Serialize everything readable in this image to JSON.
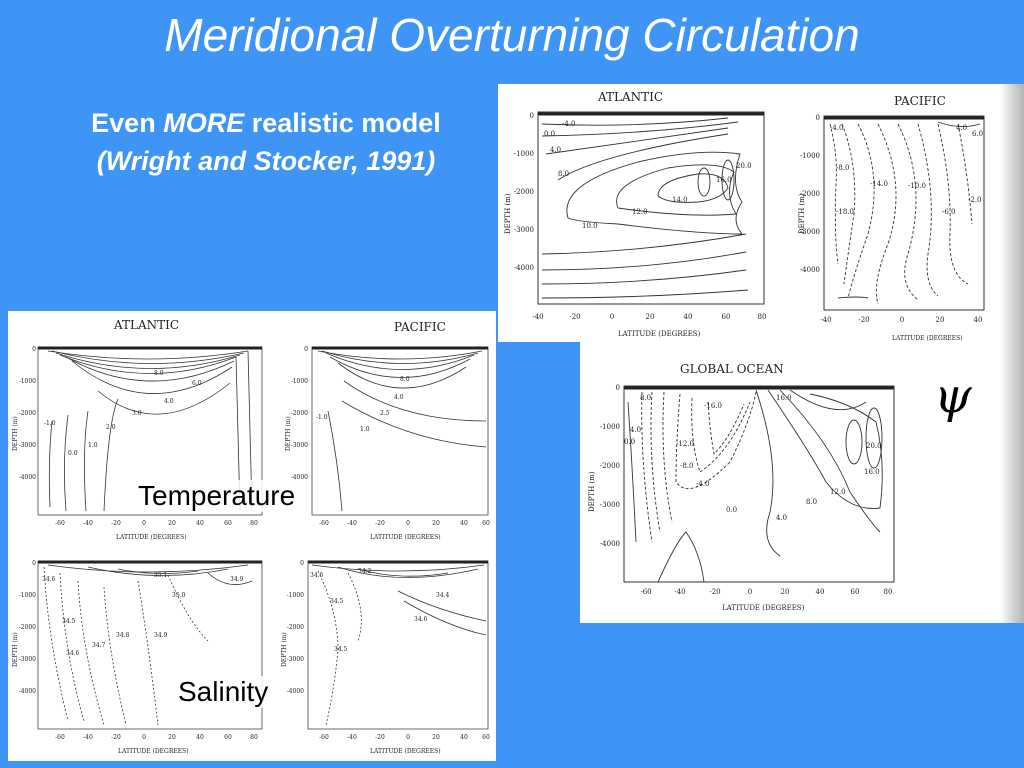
{
  "slide": {
    "title": "Meridional Overturning Circulation",
    "subtitle_prefix": "Even",
    "subtitle_emphasis": "MORE",
    "subtitle_suffix": "realistic model",
    "citation": "(Wright and Stocker, 1991)",
    "psi_symbol": "ψ",
    "temperature_label": "Temperature",
    "salinity_label": "Salinity"
  },
  "figures": {
    "streamfunction": {
      "atlantic_title": "ATLANTIC",
      "pacific_title": "PACIFIC",
      "global_title": "GLOBAL OCEAN",
      "depth_label": "DEPTH (m)",
      "lat_label": "LATITUDE (DEGREES)",
      "atlantic_contours": [
        "-4.0",
        "0.0",
        "4.0",
        "8.0",
        "10.0",
        "12.0",
        "14.0",
        "16.0",
        "20.0"
      ],
      "pacific_contours": [
        "-4.0",
        "-8.0",
        "-14.0",
        "-18.0",
        "-10.0",
        "-6.0",
        "-2.0",
        "4.0",
        "6.0"
      ],
      "global_contours": [
        "8.0",
        "4.0",
        "0.0",
        "-16.0",
        "-12.0",
        "-8.0",
        "-4.0",
        "16.0",
        "20.0",
        "12.0",
        "0.0",
        "4.0",
        "8.0",
        "16.0"
      ]
    },
    "temperature": {
      "atlantic_title": "ATLANTIC",
      "pacific_title": "PACIFIC",
      "lat_label": "LATITUDE (DEGREES)",
      "depth_label": "DEPTH (m)",
      "atlantic_contours": [
        "8.0",
        "6.0",
        "4.0",
        "3.0",
        "2.0",
        "1.0",
        "0.0",
        "-1.0"
      ],
      "pacific_contours": [
        "8.0",
        "4.0",
        "2.5",
        "1.0",
        "-1.0"
      ]
    },
    "salinity": {
      "lat_label": "LATITUDE (DEGREES)",
      "depth_label": "DEPTH (m)",
      "atlantic_contours": [
        "34.6",
        "35.1",
        "35.0",
        "34.9",
        "34.5",
        "34.8",
        "34.7",
        "34.6",
        "34.9"
      ],
      "pacific_contours": [
        "34.6",
        "34.2",
        "34.4",
        "34.5",
        "34.6",
        "34.5"
      ]
    },
    "axes": {
      "depth_ticks": [
        "0",
        "-1000",
        "-2000",
        "-3000",
        "-4000"
      ],
      "lat_ticks_full": [
        "-60",
        "-40",
        "-20",
        "0",
        "20",
        "40",
        "60",
        "80"
      ],
      "lat_ticks_atl": [
        "-40",
        "-20",
        "0",
        "20",
        "40",
        "60",
        "80"
      ],
      "lat_ticks_pac": [
        "-40",
        "-20",
        "0",
        "20",
        "40"
      ],
      "lat_ticks_tpac": [
        "-60",
        "-40",
        "-20",
        "0",
        "20",
        "40",
        "60"
      ]
    }
  }
}
